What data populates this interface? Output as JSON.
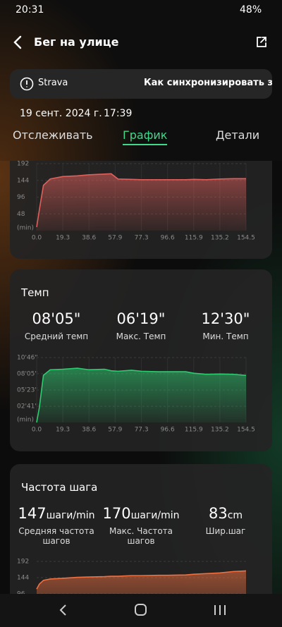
{
  "status_bar": {
    "time": "20:31",
    "battery": "48%"
  },
  "header": {
    "title": "Бег на улице"
  },
  "banner": {
    "app": "Strava",
    "link": "Как синхронизировать запи"
  },
  "date": "19 сент. 2024 г.",
  "time": "17:39",
  "tabs": [
    "Отслеживать",
    "График",
    "Детали"
  ],
  "active_tab": 1,
  "chart_data": [
    {
      "type": "line",
      "x_label": "(min)",
      "x": [
        0,
        2,
        5,
        10,
        19.3,
        30,
        38.6,
        50,
        55,
        60,
        70,
        77.3,
        90,
        96.6,
        110,
        115.9,
        125,
        135.2,
        145,
        154.5
      ],
      "xlim": [
        0,
        154.5
      ],
      "xticks": [
        {
          "value": 0,
          "label": "0.0"
        },
        19.3,
        38.6,
        57.9,
        77.3,
        96.6,
        115.9,
        135.2,
        154.5
      ],
      "ylim": [
        0,
        192
      ],
      "yticks": [
        192,
        144,
        96,
        48
      ],
      "grid": true,
      "series": [
        {
          "color": "#e0605c",
          "values": [
            10,
            60,
            130,
            148,
            155,
            157,
            160,
            162,
            163,
            148,
            147,
            146,
            146,
            146,
            146,
            147,
            146,
            148,
            149,
            149
          ]
        }
      ]
    },
    {
      "type": "line",
      "title": "Темп",
      "x_label": "(min)",
      "stats": [
        {
          "value": "08'05\"",
          "label": "Средний темп"
        },
        {
          "value": "06'19\"",
          "label": "Макс. Темп"
        },
        {
          "value": "12'30\"",
          "label": "Мин. Темп"
        }
      ],
      "x": [
        0,
        2,
        5,
        10,
        19.3,
        30,
        38.6,
        50,
        55,
        60,
        70,
        77.3,
        90,
        96.6,
        110,
        115.9,
        125,
        135.2,
        145,
        154.5
      ],
      "xlim": [
        0,
        154.5
      ],
      "xticks": [
        {
          "value": 0,
          "label": "0.0"
        },
        19.3,
        38.6,
        57.9,
        77.3,
        96.6,
        115.9,
        135.2,
        154.5
      ],
      "ylim": [
        0,
        646
      ],
      "yticks": [
        {
          "value": 646,
          "label": "10'46\""
        },
        {
          "value": 485,
          "label": "08'05\""
        },
        {
          "value": 323,
          "label": "05'23\""
        },
        {
          "value": 161,
          "label": "02'41\""
        }
      ],
      "grid": true,
      "series": [
        {
          "color": "#2ecc71",
          "values": [
            0,
            150,
            470,
            525,
            530,
            540,
            525,
            530,
            515,
            510,
            520,
            510,
            505,
            505,
            505,
            490,
            480,
            482,
            480,
            468
          ]
        }
      ]
    },
    {
      "type": "line",
      "title": "Частота шага",
      "stats": [
        {
          "value": 147,
          "unit": "шаги/min",
          "label": "Средняя частота шагов"
        },
        {
          "value": 170,
          "unit": "шаги/min",
          "label": "Макс. Частота шагов"
        },
        {
          "value": 83,
          "unit": "cm",
          "label": "Шир.шаг"
        }
      ],
      "x": [
        0,
        2,
        5,
        10,
        19.3,
        30,
        38.6,
        50,
        55,
        60,
        70,
        77.3,
        90,
        96.6,
        110,
        115.9,
        125,
        135.2,
        145,
        154.5
      ],
      "xlim": [
        0,
        154.5
      ],
      "ylim": [
        0,
        192
      ],
      "yticks": [
        192,
        144,
        96
      ],
      "grid": true,
      "series": [
        {
          "color": "#f07040",
          "values": [
            110,
            125,
            136,
            140,
            142,
            145,
            146,
            147,
            148,
            148,
            150,
            150,
            151,
            151,
            152,
            154,
            156,
            158,
            162,
            164
          ]
        }
      ]
    }
  ]
}
